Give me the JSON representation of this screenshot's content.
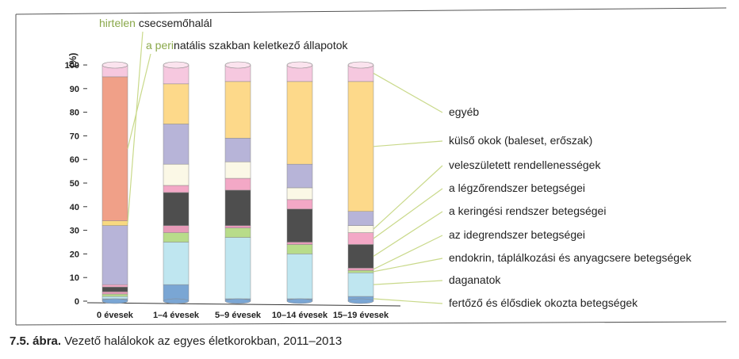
{
  "caption": {
    "number": "7.5. ábra.",
    "text": "Vezető halálokok az egyes életkorokban, 2011–2013"
  },
  "chart_data": {
    "type": "bar",
    "stacked": true,
    "normalized": true,
    "ylabel": "(%)",
    "ylim": [
      0,
      100
    ],
    "yticks": [
      0,
      10,
      20,
      30,
      40,
      50,
      60,
      70,
      80,
      90,
      100
    ],
    "categories": [
      "0 évesek",
      "1–4 évesek",
      "5–9 évesek",
      "10–14 évesek",
      "15–19 évesek"
    ],
    "series": [
      {
        "name": "fertőző és élősdiek okozta betegségek",
        "color": "#7aa6d4",
        "values": [
          1,
          7,
          1,
          1,
          2
        ]
      },
      {
        "name": "daganatok",
        "color": "#bfe6f0",
        "values": [
          1,
          18,
          26,
          19,
          10
        ]
      },
      {
        "name": "endokrin, táplálkozási és anyagcsere betegségek",
        "color": "#b8dc8a",
        "values": [
          1,
          4,
          4,
          4,
          1
        ]
      },
      {
        "name": "az idegrendszer betegségei",
        "color": "#e79ab8",
        "values": [
          1,
          3,
          1,
          1,
          1
        ]
      },
      {
        "name": "a keringési rendszer betegségei",
        "color": "#4e4e4e",
        "values": [
          2,
          14,
          15,
          14,
          10
        ]
      },
      {
        "name": "a légzőrendszer betegségei",
        "color": "#f3a8c6",
        "values": [
          1,
          3,
          5,
          4,
          5
        ]
      },
      {
        "name": "veleszületett rendellenességek",
        "color": "#fbf8e6",
        "values": [
          0,
          9,
          7,
          5,
          3
        ]
      },
      {
        "name": "a perinatális szakban keletkező állapotok",
        "color": "#b7b4d8",
        "values": [
          25,
          0,
          0,
          0,
          0
        ]
      },
      {
        "name": "hirtelen csecsemőhalál",
        "color": "#f8d980",
        "values": [
          2,
          0,
          0,
          0,
          0
        ]
      },
      {
        "name": "a perinatális szakban keletkező állapotok",
        "color": "#f0a088",
        "values": [
          61,
          0,
          0,
          0,
          0
        ]
      },
      {
        "name": "egyéb",
        "color": "#b7b4d8",
        "values": [
          0,
          17,
          10,
          10,
          6
        ]
      },
      {
        "name": "külső okok (baleset, erőszak)",
        "color": "#fdd98a",
        "values": [
          0,
          17,
          24,
          35,
          55
        ]
      },
      {
        "name": "egyéb",
        "color": "#f6c8df",
        "values": [
          5,
          8,
          7,
          7,
          7
        ]
      }
    ],
    "legend": [
      "egyéb",
      "külső okok (baleset, erőszak)",
      "veleszületett rendellenességek",
      "a légzőrendszer betegségei",
      "a keringési rendszer betegségei",
      "az idegrendszer betegségei",
      "endokrin, táplálkozási és anyagcsere betegségek",
      "daganatok",
      "fertőző és élősdiek okozta betegségek"
    ],
    "annotations": [
      {
        "prefix": "hirtelen",
        "text": "csecsemőhalál"
      },
      {
        "prefix": "a peri",
        "text": "natális szakban keletkező állapotok"
      }
    ]
  }
}
